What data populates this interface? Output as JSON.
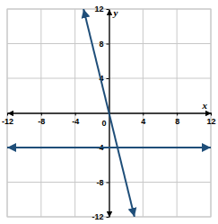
{
  "chart_data": {
    "type": "line",
    "x_label": "x",
    "y_label": "y",
    "xlim": [
      -12,
      12
    ],
    "ylim": [
      -12,
      12
    ],
    "xticks": [
      -12,
      -8,
      -4,
      0,
      4,
      8,
      12
    ],
    "yticks": [
      -12,
      -8,
      -4,
      4,
      8,
      12
    ],
    "grid": true,
    "series": [
      {
        "x": [
          -3,
          3
        ],
        "values": [
          12,
          -12
        ],
        "color": "#1f4e79"
      },
      {
        "x": [
          -12,
          12
        ],
        "values": [
          -4,
          -4
        ],
        "color": "#1f4e79"
      }
    ]
  }
}
